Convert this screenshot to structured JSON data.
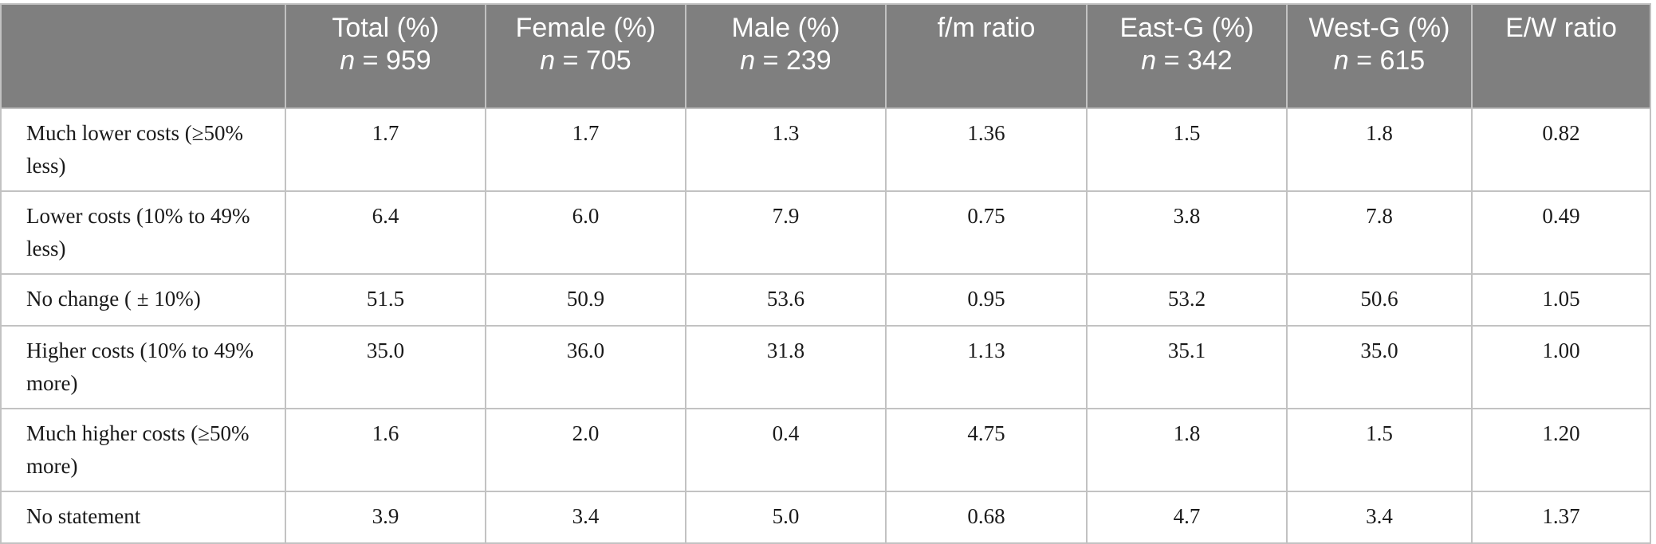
{
  "table": {
    "headers": [
      {
        "label": "",
        "n": ""
      },
      {
        "label": "Total (%)",
        "n": "= 959"
      },
      {
        "label": "Female (%)",
        "n": "= 705"
      },
      {
        "label": "Male (%)",
        "n": "= 239"
      },
      {
        "label": "f/m ratio",
        "n": ""
      },
      {
        "label": "East-G (%)",
        "n": "= 342"
      },
      {
        "label": "West-G (%)",
        "n": "= 615"
      },
      {
        "label": "E/W ratio",
        "n": ""
      }
    ],
    "n_symbol": "n",
    "rows": [
      {
        "label": "Much lower costs (≥50% less)",
        "values": [
          "1.7",
          "1.7",
          "1.3",
          "1.36",
          "1.5",
          "1.8",
          "0.82"
        ]
      },
      {
        "label": "Lower costs (10% to 49% less)",
        "values": [
          "6.4",
          "6.0",
          "7.9",
          "0.75",
          "3.8",
          "7.8",
          "0.49"
        ]
      },
      {
        "label": "No change ( ± 10%)",
        "values": [
          "51.5",
          "50.9",
          "53.6",
          "0.95",
          "53.2",
          "50.6",
          "1.05"
        ]
      },
      {
        "label": "Higher costs (10% to 49% more)",
        "values": [
          "35.0",
          "36.0",
          "31.8",
          "1.13",
          "35.1",
          "35.0",
          "1.00"
        ]
      },
      {
        "label": "Much higher costs (≥50% more)",
        "values": [
          "1.6",
          "2.0",
          "0.4",
          "4.75",
          "1.8",
          "1.5",
          "1.20"
        ]
      },
      {
        "label": "No statement",
        "values": [
          "3.9",
          "3.4",
          "5.0",
          "0.68",
          "4.7",
          "3.4",
          "1.37"
        ]
      }
    ]
  }
}
